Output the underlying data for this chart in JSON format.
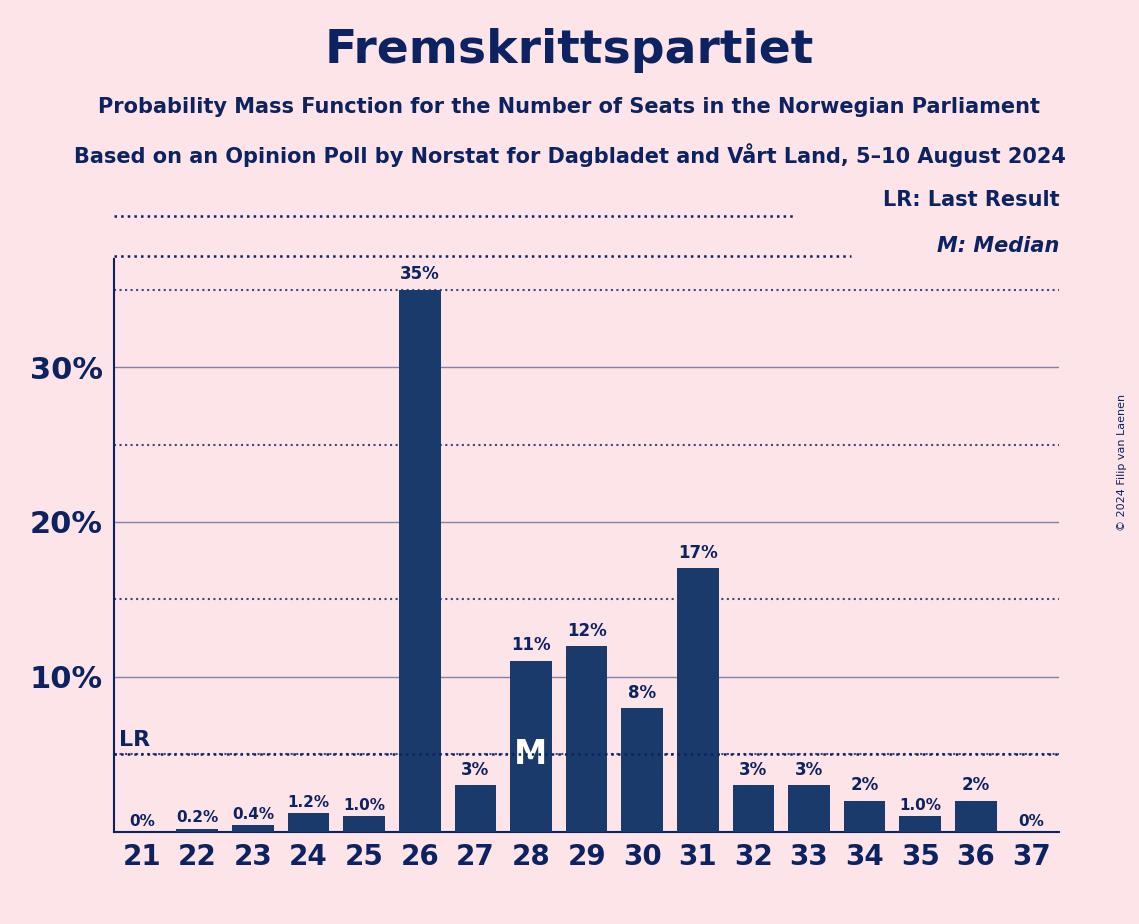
{
  "title": "Fremskrittspartiet",
  "subtitle1": "Probability Mass Function for the Number of Seats in the Norwegian Parliament",
  "subtitle2": "Based on an Opinion Poll by Norstat for Dagbladet and Vårt Land, 5–10 August 2024",
  "copyright": "© 2024 Filip van Laenen",
  "seats": [
    21,
    22,
    23,
    24,
    25,
    26,
    27,
    28,
    29,
    30,
    31,
    32,
    33,
    34,
    35,
    36,
    37
  ],
  "probabilities": [
    0.0,
    0.2,
    0.4,
    1.2,
    1.0,
    35.0,
    3.0,
    11.0,
    12.0,
    8.0,
    17.0,
    3.0,
    3.0,
    2.0,
    1.0,
    2.0,
    0.0
  ],
  "bar_color": "#1a3a6b",
  "background_color": "#fce4e8",
  "text_color": "#0d2260",
  "lr_value": 5.0,
  "median_seat": 28,
  "lr_label": "LR: Last Result",
  "median_label": "M: Median",
  "ylabel_ticks": [
    10,
    20,
    30
  ],
  "solid_gridlines": [
    10,
    20,
    30
  ],
  "dotted_gridlines": [
    5,
    15,
    25,
    35
  ],
  "ylim": [
    0,
    37
  ],
  "xlim": [
    20.5,
    37.5
  ],
  "bar_labels": [
    "0%",
    "0.2%",
    "0.4%",
    "1.2%",
    "1.0%",
    "35%",
    "3%",
    "11%",
    "12%",
    "8%",
    "17%",
    "3%",
    "3%",
    "2%",
    "1.0%",
    "2%",
    "0%"
  ]
}
